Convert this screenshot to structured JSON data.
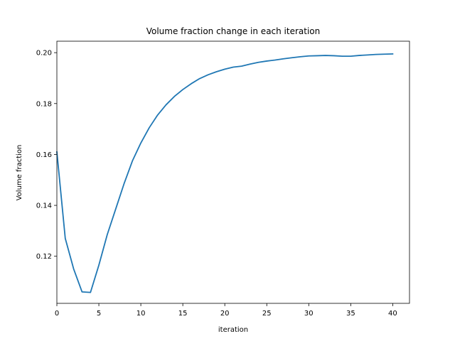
{
  "chart_data": {
    "type": "line",
    "title": "Volume fraction change in each iteration",
    "xlabel": "iteration",
    "ylabel": "Volume fraction",
    "xlim": [
      0,
      42
    ],
    "ylim": [
      0.1015,
      0.2045
    ],
    "xticks": [
      0,
      5,
      10,
      15,
      20,
      25,
      30,
      35,
      40
    ],
    "yticks": [
      0.12,
      0.14,
      0.16,
      0.18,
      0.2
    ],
    "ytick_labels": [
      "0.12",
      "0.14",
      "0.16",
      "0.18",
      "0.20"
    ],
    "grid": false,
    "line_color": "#1f77b4",
    "series": [
      {
        "x": [
          0,
          1,
          2,
          3,
          4,
          5,
          6,
          7,
          8,
          9,
          10,
          11,
          12,
          13,
          14,
          15,
          16,
          17,
          18,
          19,
          20,
          21,
          22,
          23,
          24,
          25,
          26,
          27,
          28,
          29,
          30,
          31,
          32,
          33,
          34,
          35,
          36,
          37,
          38,
          39,
          40
        ],
        "values": [
          0.161,
          0.127,
          0.115,
          0.106,
          0.1058,
          0.1165,
          0.1285,
          0.1385,
          0.1485,
          0.1575,
          0.1645,
          0.1705,
          0.1755,
          0.1795,
          0.1828,
          0.1855,
          0.1878,
          0.1898,
          0.1913,
          0.1925,
          0.1935,
          0.1943,
          0.1947,
          0.1955,
          0.1962,
          0.1967,
          0.1971,
          0.1976,
          0.198,
          0.1984,
          0.1987,
          0.1988,
          0.1989,
          0.1988,
          0.1986,
          0.1986,
          0.1989,
          0.1991,
          0.1993,
          0.1994,
          0.1995
        ]
      }
    ]
  }
}
